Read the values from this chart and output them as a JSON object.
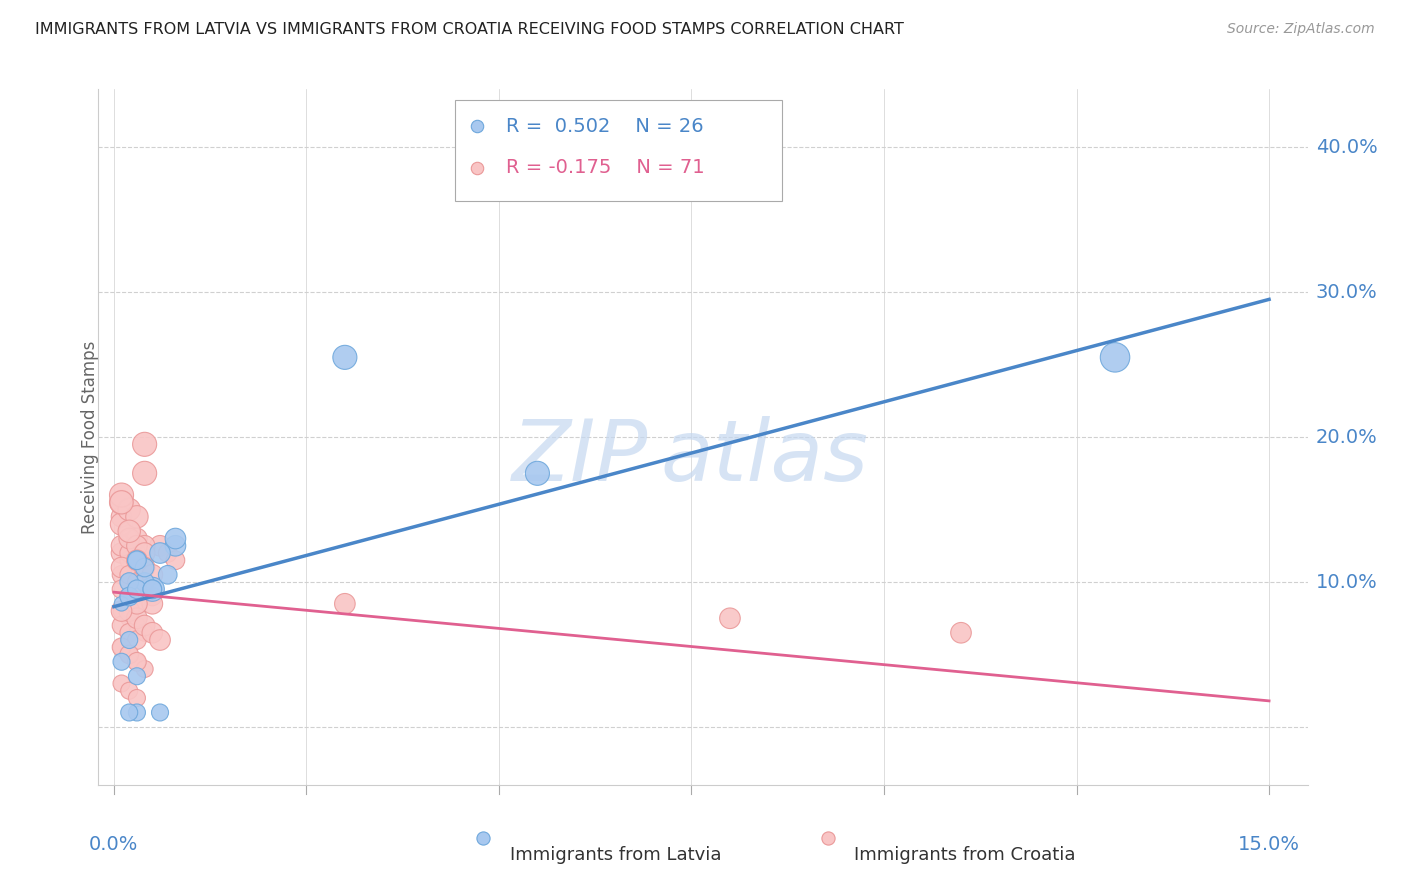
{
  "title": "IMMIGRANTS FROM LATVIA VS IMMIGRANTS FROM CROATIA RECEIVING FOOD STAMPS CORRELATION CHART",
  "source": "Source: ZipAtlas.com",
  "ylabel": "Receiving Food Stamps",
  "yticks": [
    0.0,
    0.1,
    0.2,
    0.3,
    0.4
  ],
  "ytick_labels": [
    "",
    "10.0%",
    "20.0%",
    "30.0%",
    "40.0%"
  ],
  "xtick_labels": [
    "0.0%",
    "",
    "",
    "",
    "",
    "",
    "15.0%"
  ],
  "xticks": [
    0.0,
    0.025,
    0.05,
    0.075,
    0.1,
    0.125,
    0.15
  ],
  "xlim": [
    -0.002,
    0.155
  ],
  "ylim": [
    -0.04,
    0.44
  ],
  "latvia_color": "#6fa8dc",
  "latvia_color_fill": "#a8c8ef",
  "croatia_color": "#ea9999",
  "croatia_color_fill": "#f9c5c5",
  "latvia_line_color": "#4a86c8",
  "croatia_line_color": "#e06090",
  "legend_R_latvia": "0.502",
  "legend_N_latvia": "26",
  "legend_R_croatia": "-0.175",
  "legend_N_croatia": "71",
  "background_color": "#ffffff",
  "grid_color": "#d0d0d0",
  "axis_color": "#4a86c8",
  "latvia_scatter_x": [
    0.005,
    0.008,
    0.003,
    0.002,
    0.001,
    0.004,
    0.006,
    0.007,
    0.003,
    0.002,
    0.001,
    0.008,
    0.002,
    0.03,
    0.003,
    0.055,
    0.003,
    0.13,
    0.002,
    0.004,
    0.003,
    0.005,
    0.002,
    0.003,
    0.005,
    0.006
  ],
  "latvia_scatter_y": [
    0.095,
    0.125,
    0.115,
    0.09,
    0.085,
    0.1,
    0.12,
    0.105,
    0.115,
    0.1,
    0.045,
    0.13,
    0.09,
    0.255,
    0.01,
    0.175,
    0.095,
    0.255,
    0.01,
    0.11,
    0.115,
    0.095,
    0.06,
    0.035,
    0.095,
    0.01
  ],
  "latvia_scatter_size": [
    300,
    220,
    180,
    150,
    110,
    180,
    220,
    180,
    150,
    180,
    150,
    220,
    180,
    300,
    150,
    300,
    180,
    450,
    150,
    180,
    180,
    180,
    150,
    150,
    180,
    150
  ],
  "croatia_scatter_x": [
    0.001,
    0.002,
    0.003,
    0.004,
    0.001,
    0.002,
    0.003,
    0.004,
    0.001,
    0.002,
    0.003,
    0.004,
    0.001,
    0.002,
    0.003,
    0.004,
    0.001,
    0.002,
    0.003,
    0.001,
    0.002,
    0.003,
    0.001,
    0.002,
    0.003,
    0.001,
    0.002,
    0.003,
    0.001,
    0.002,
    0.003,
    0.001,
    0.002,
    0.003,
    0.001,
    0.002,
    0.003,
    0.004,
    0.005,
    0.006,
    0.007,
    0.008,
    0.001,
    0.002,
    0.003,
    0.004,
    0.001,
    0.002,
    0.003,
    0.002,
    0.003,
    0.004,
    0.003,
    0.004,
    0.005,
    0.03,
    0.004,
    0.002,
    0.003,
    0.004,
    0.005,
    0.006,
    0.08,
    0.11,
    0.004,
    0.001,
    0.001,
    0.005,
    0.003,
    0.002,
    0.001
  ],
  "croatia_scatter_y": [
    0.145,
    0.13,
    0.12,
    0.115,
    0.105,
    0.1,
    0.095,
    0.09,
    0.08,
    0.075,
    0.07,
    0.065,
    0.055,
    0.05,
    0.045,
    0.04,
    0.03,
    0.025,
    0.02,
    0.12,
    0.115,
    0.11,
    0.095,
    0.09,
    0.085,
    0.07,
    0.065,
    0.06,
    0.055,
    0.05,
    0.045,
    0.125,
    0.12,
    0.115,
    0.11,
    0.105,
    0.1,
    0.095,
    0.09,
    0.125,
    0.12,
    0.115,
    0.14,
    0.135,
    0.13,
    0.125,
    0.155,
    0.15,
    0.145,
    0.13,
    0.125,
    0.12,
    0.115,
    0.11,
    0.105,
    0.085,
    0.175,
    0.08,
    0.075,
    0.07,
    0.065,
    0.06,
    0.075,
    0.065,
    0.195,
    0.16,
    0.155,
    0.085,
    0.085,
    0.135,
    0.08
  ],
  "croatia_scatter_size": [
    220,
    180,
    180,
    150,
    180,
    150,
    150,
    150,
    150,
    150,
    150,
    150,
    150,
    150,
    150,
    150,
    150,
    150,
    150,
    220,
    180,
    180,
    180,
    180,
    180,
    180,
    180,
    180,
    180,
    180,
    180,
    220,
    180,
    180,
    220,
    180,
    180,
    180,
    180,
    220,
    180,
    180,
    260,
    220,
    220,
    220,
    300,
    260,
    260,
    220,
    220,
    220,
    220,
    220,
    220,
    220,
    300,
    220,
    220,
    220,
    220,
    220,
    220,
    220,
    300,
    300,
    280,
    220,
    220,
    260,
    220
  ],
  "latvia_line_x": [
    0.0,
    0.15
  ],
  "latvia_line_y": [
    0.083,
    0.295
  ],
  "croatia_line_x": [
    0.0,
    0.15
  ],
  "croatia_line_y": [
    0.093,
    0.018
  ]
}
